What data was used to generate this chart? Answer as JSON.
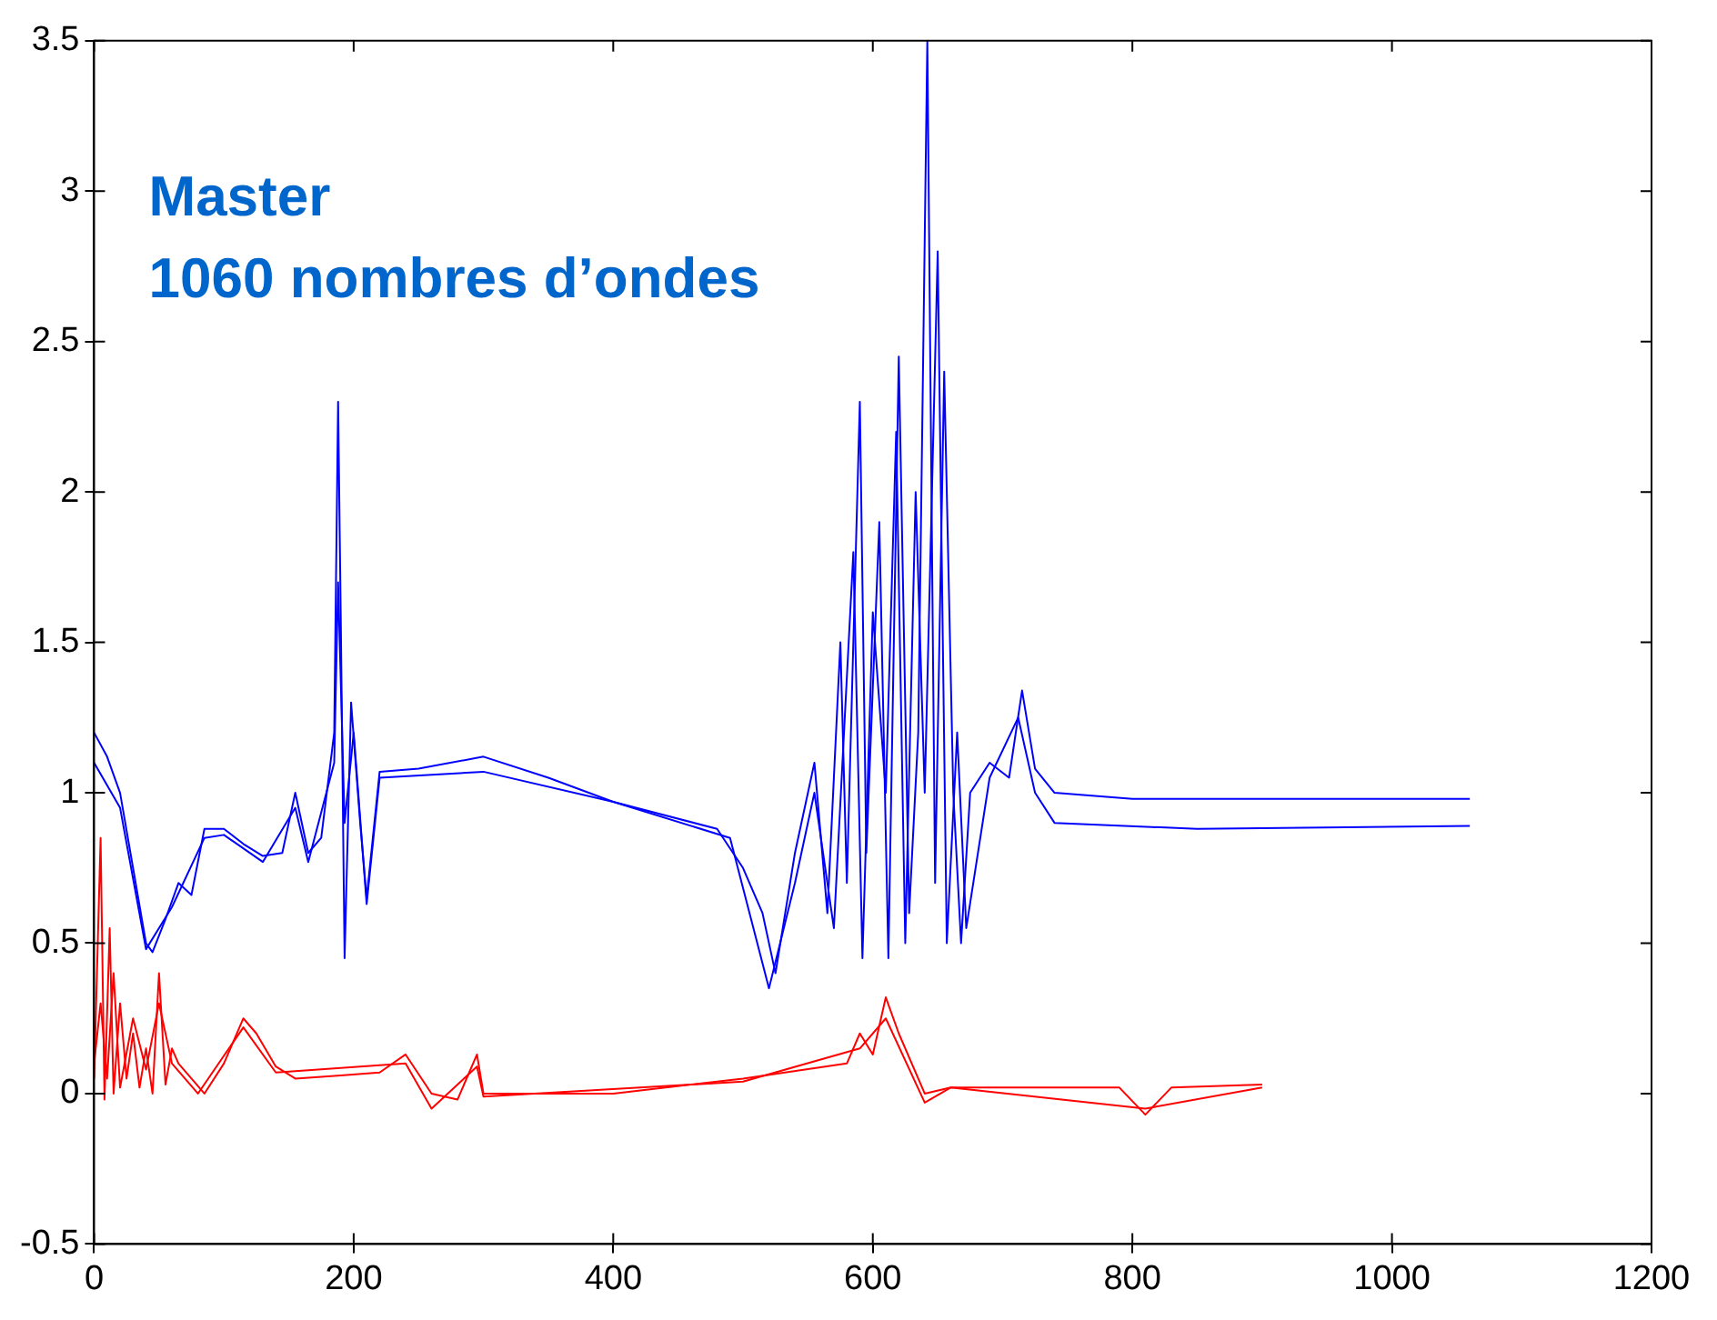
{
  "chart_data": {
    "type": "line",
    "annotations": [
      "Master",
      "1060 nombres d’ondes"
    ],
    "xlim": [
      0,
      1200
    ],
    "xticks": [
      0,
      200,
      400,
      600,
      800,
      1000,
      1200
    ],
    "ylim": [
      -0.5,
      3.5
    ],
    "yticks": [
      -0.5,
      0,
      0.5,
      1,
      1.5,
      2,
      2.5,
      3,
      3.5
    ],
    "grid": false,
    "legend": false,
    "marker": "none",
    "line_style": "solid",
    "series": [
      {
        "color": "#0000ff",
        "x": [
          0,
          10,
          20,
          30,
          40,
          45,
          55,
          65,
          75,
          85,
          100,
          115,
          130,
          145,
          155,
          165,
          175,
          185,
          188,
          190,
          193,
          198,
          205,
          210,
          220,
          250,
          300,
          350,
          400,
          480,
          500,
          515,
          525,
          540,
          555,
          565,
          575,
          580,
          590,
          595,
          605,
          612,
          620,
          628,
          635,
          642,
          648,
          655,
          662,
          668,
          675,
          690,
          705,
          715,
          725,
          740,
          800,
          1060
        ],
        "values": [
          1.2,
          1.12,
          1.0,
          0.75,
          0.5,
          0.47,
          0.58,
          0.7,
          0.66,
          0.88,
          0.88,
          0.83,
          0.79,
          0.8,
          1.0,
          0.8,
          0.85,
          1.2,
          2.3,
          1.6,
          0.45,
          1.3,
          0.9,
          0.65,
          1.07,
          1.08,
          1.12,
          1.05,
          0.97,
          0.88,
          0.75,
          0.6,
          0.4,
          0.8,
          1.1,
          0.6,
          1.5,
          0.7,
          2.3,
          0.8,
          1.9,
          0.45,
          2.45,
          0.6,
          1.2,
          3.5,
          0.7,
          2.4,
          1.0,
          0.5,
          1.0,
          1.1,
          1.05,
          1.34,
          1.08,
          1.0,
          0.98,
          0.98
        ]
      },
      {
        "color": "#0000ff",
        "x": [
          0,
          20,
          40,
          60,
          85,
          100,
          130,
          155,
          165,
          185,
          188,
          193,
          200,
          210,
          220,
          300,
          400,
          490,
          520,
          540,
          555,
          570,
          585,
          592,
          600,
          610,
          618,
          625,
          633,
          640,
          650,
          657,
          665,
          672,
          690,
          712,
          725,
          740,
          850,
          1060
        ],
        "values": [
          1.1,
          0.95,
          0.48,
          0.62,
          0.85,
          0.86,
          0.77,
          0.95,
          0.77,
          1.1,
          1.7,
          0.9,
          1.2,
          0.63,
          1.05,
          1.07,
          0.97,
          0.85,
          0.35,
          0.7,
          1.0,
          0.55,
          1.8,
          0.45,
          1.6,
          1.0,
          2.2,
          0.5,
          2.0,
          1.0,
          2.8,
          0.5,
          1.2,
          0.55,
          1.05,
          1.25,
          1.0,
          0.9,
          0.88,
          0.89
        ]
      },
      {
        "color": "#ff0000",
        "x": [
          0,
          5,
          8,
          12,
          15,
          20,
          25,
          30,
          35,
          40,
          45,
          50,
          55,
          60,
          65,
          75,
          85,
          100,
          115,
          125,
          140,
          155,
          190,
          220,
          240,
          260,
          280,
          295,
          300,
          400,
          500,
          580,
          590,
          600,
          610,
          620,
          640,
          660,
          700,
          790,
          810,
          830,
          900
        ],
        "values": [
          0.05,
          0.85,
          -0.02,
          0.55,
          0.0,
          0.3,
          0.05,
          0.2,
          0.02,
          0.15,
          0.0,
          0.4,
          0.03,
          0.15,
          0.1,
          0.05,
          0.0,
          0.1,
          0.25,
          0.2,
          0.09,
          0.05,
          0.06,
          0.07,
          0.13,
          0.0,
          -0.02,
          0.13,
          0.0,
          0.0,
          0.05,
          0.1,
          0.2,
          0.13,
          0.32,
          0.2,
          0.0,
          0.02,
          0.02,
          0.02,
          -0.07,
          0.02,
          0.03
        ]
      },
      {
        "color": "#ff0000",
        "x": [
          0,
          5,
          10,
          15,
          20,
          30,
          40,
          50,
          60,
          80,
          115,
          140,
          240,
          260,
          295,
          300,
          500,
          590,
          610,
          640,
          660,
          810,
          900
        ],
        "values": [
          0.1,
          0.3,
          0.05,
          0.4,
          0.02,
          0.25,
          0.08,
          0.3,
          0.1,
          0.0,
          0.22,
          0.07,
          0.1,
          -0.05,
          0.09,
          -0.01,
          0.04,
          0.15,
          0.25,
          -0.03,
          0.02,
          -0.05,
          0.02
        ]
      }
    ]
  }
}
